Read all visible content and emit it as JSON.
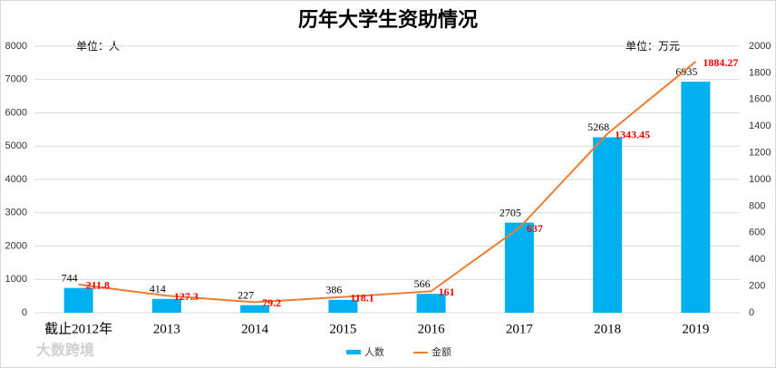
{
  "chart_data": {
    "type": "bar",
    "title": "历年大学生资助情况",
    "annotations": [
      "单位：人",
      "单位：万元"
    ],
    "watermark": "大数跨境",
    "categories": [
      "截止2012年",
      "2013",
      "2014",
      "2015",
      "2016",
      "2017",
      "2018",
      "2019"
    ],
    "series": [
      {
        "name": "人数",
        "type": "bar",
        "color": "#00b0f0",
        "values": [
          744,
          414,
          227,
          386,
          566,
          2705,
          5268,
          6935
        ]
      },
      {
        "name": "金额",
        "type": "line",
        "axis": "y2",
        "color": "#ed7d31",
        "label_color": "#ff0000",
        "values": [
          211.8,
          127.3,
          79.2,
          118.1,
          161,
          637,
          1343.45,
          1884.27
        ]
      }
    ],
    "ylim": [
      0,
      8000
    ],
    "yticks": [
      0,
      1000,
      2000,
      3000,
      4000,
      5000,
      6000,
      7000,
      8000
    ],
    "y2lim": [
      0,
      2000
    ],
    "y2ticks": [
      0,
      200,
      400,
      600,
      800,
      1000,
      1200,
      1400,
      1600,
      1800,
      2000
    ],
    "grid": true
  }
}
